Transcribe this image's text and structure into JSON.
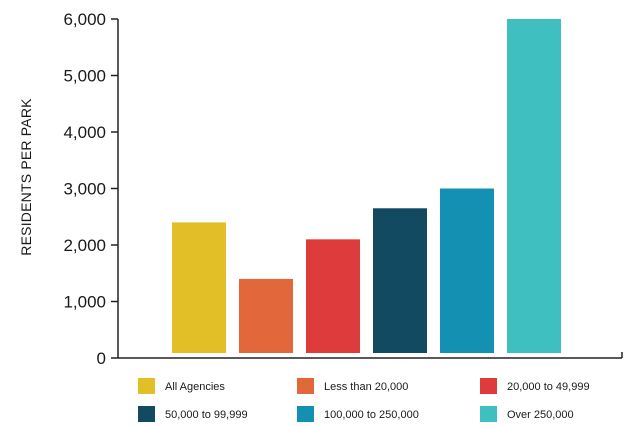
{
  "chart_data": {
    "type": "bar",
    "ylabel": "RESIDENTS PER PARK",
    "ylim": [
      0,
      6000
    ],
    "yticks": [
      0,
      1000,
      2000,
      3000,
      4000,
      5000,
      6000
    ],
    "ytick_labels": [
      "0",
      "1,000",
      "2,000",
      "3,000",
      "4,000",
      "5,000",
      "6,000"
    ],
    "categories": [
      "All Agencies",
      "Less than 20,000",
      "20,000 to 49,999",
      "50,000 to 99,999",
      "100,000 to 250,000",
      "Over 250,000"
    ],
    "values": [
      2400,
      1400,
      2100,
      2650,
      3000,
      6000
    ],
    "colors": [
      "#e3bf27",
      "#e2673a",
      "#de3b3d",
      "#124a62",
      "#1490b3",
      "#40bfc1"
    ],
    "grid": false,
    "legend_position": "bottom",
    "legend_columns": 3
  }
}
